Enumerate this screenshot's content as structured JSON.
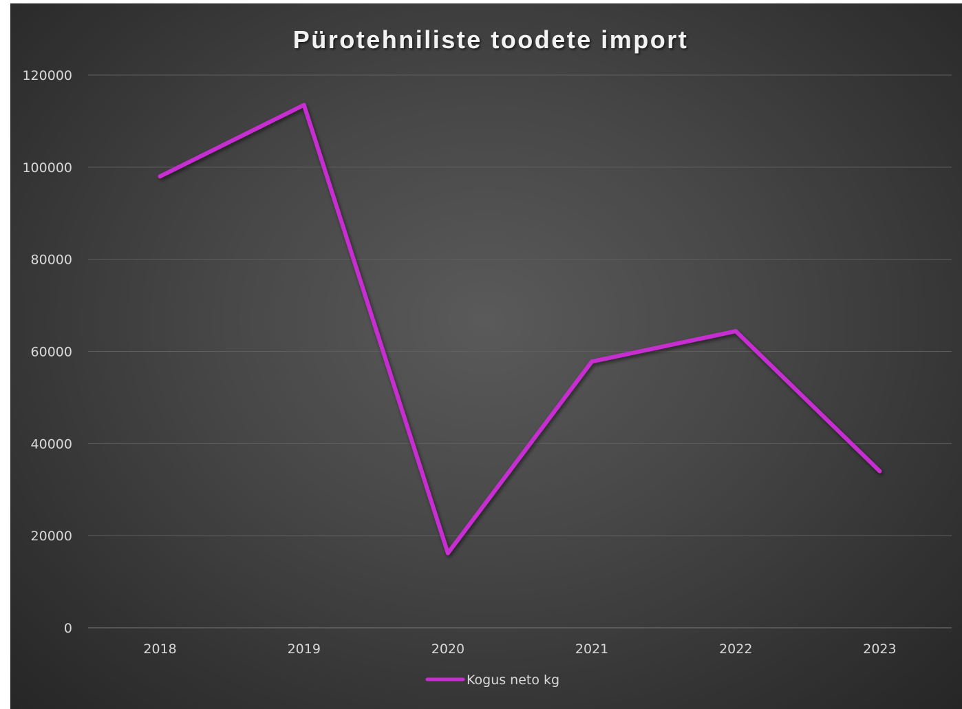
{
  "chart_data": {
    "type": "line",
    "title": "Pürotehniliste toodete import",
    "xlabel": "",
    "ylabel": "",
    "categories": [
      "2018",
      "2019",
      "2020",
      "2021",
      "2022",
      "2023"
    ],
    "series": [
      {
        "name": "Kogus neto kg",
        "color": "#c72fd1",
        "values": [
          98000,
          113500,
          16200,
          57800,
          64400,
          34000
        ]
      }
    ],
    "ylim": [
      0,
      120000
    ],
    "yticks": [
      0,
      20000,
      40000,
      60000,
      80000,
      100000,
      120000
    ],
    "yticks_labels": [
      "0",
      "20000",
      "40000",
      "60000",
      "80000",
      "100000",
      "120000"
    ],
    "grid": true,
    "legend": "bottom",
    "colors": {
      "background": "#474747",
      "text": "#d9d9d9",
      "title": "#f2f2f2"
    }
  }
}
